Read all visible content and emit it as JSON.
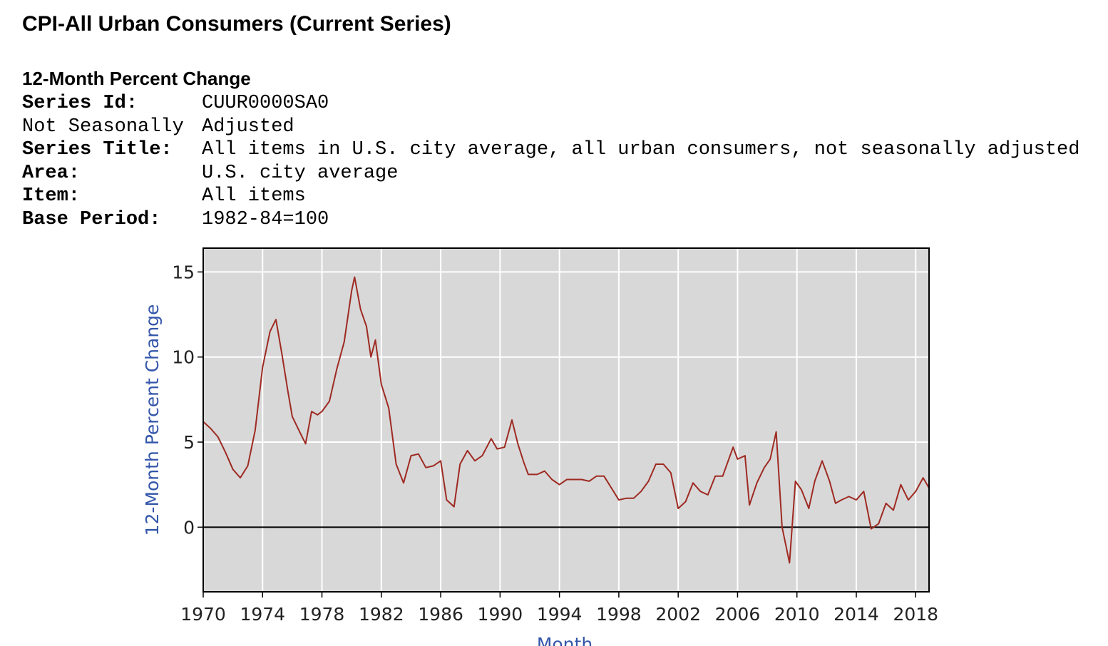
{
  "header": {
    "title": "CPI-All Urban Consumers (Current Series)",
    "subtitle": "12-Month Percent Change",
    "fields": [
      {
        "label": "Series Id:",
        "value": "CUUR0000SA0"
      },
      {
        "label": "Not Seasonally",
        "value": "Adjusted"
      },
      {
        "label": "Series Title:",
        "value": "All items in U.S. city average, all urban consumers, not seasonally adjusted"
      },
      {
        "label": "Area:",
        "value": "U.S. city average"
      },
      {
        "label": "Item:",
        "value": "All items"
      },
      {
        "label": "Base Period:",
        "value": "1982-84=100"
      }
    ]
  },
  "chart_data": {
    "type": "line",
    "xlabel": "Month",
    "ylabel": "12-Month Percent Change",
    "xlim": [
      1970,
      2018.9
    ],
    "ylim": [
      -3.8,
      16.4
    ],
    "xticks": [
      1970,
      1974,
      1978,
      1982,
      1986,
      1990,
      1994,
      1998,
      2002,
      2006,
      2010,
      2014,
      2018
    ],
    "yticks": [
      0,
      5,
      10,
      15
    ],
    "grid": true,
    "series": [
      {
        "name": "12-Month Percent Change",
        "color": "#9e2a22",
        "x": [
          1970.0,
          1970.5,
          1971.0,
          1971.5,
          1972.0,
          1972.5,
          1973.0,
          1973.5,
          1974.0,
          1974.5,
          1974.9,
          1975.3,
          1975.7,
          1976.0,
          1976.5,
          1976.9,
          1977.3,
          1977.7,
          1978.0,
          1978.5,
          1979.0,
          1979.5,
          1980.0,
          1980.2,
          1980.6,
          1981.0,
          1981.3,
          1981.6,
          1982.0,
          1982.5,
          1983.0,
          1983.5,
          1984.0,
          1984.5,
          1985.0,
          1985.5,
          1986.0,
          1986.4,
          1986.9,
          1987.3,
          1987.8,
          1988.3,
          1988.8,
          1989.4,
          1989.8,
          1990.3,
          1990.8,
          1991.2,
          1991.6,
          1991.9,
          1992.5,
          1993.0,
          1993.5,
          1994.0,
          1994.5,
          1995.0,
          1995.5,
          1996.0,
          1996.5,
          1997.0,
          1997.5,
          1998.0,
          1998.5,
          1999.0,
          1999.5,
          2000.0,
          2000.5,
          2001.0,
          2001.5,
          2002.0,
          2002.5,
          2003.0,
          2003.5,
          2004.0,
          2004.5,
          2005.0,
          2005.7,
          2006.0,
          2006.5,
          2006.8,
          2007.3,
          2007.8,
          2008.2,
          2008.6,
          2009.0,
          2009.5,
          2009.9,
          2010.3,
          2010.8,
          2011.2,
          2011.7,
          2012.2,
          2012.6,
          2013.0,
          2013.5,
          2014.0,
          2014.5,
          2015.0,
          2015.5,
          2016.0,
          2016.5,
          2017.0,
          2017.5,
          2018.0,
          2018.5,
          2018.9
        ],
        "values": [
          6.2,
          5.8,
          5.3,
          4.4,
          3.4,
          2.9,
          3.6,
          5.7,
          9.4,
          11.5,
          12.2,
          10.2,
          8.0,
          6.5,
          5.6,
          4.9,
          6.8,
          6.6,
          6.8,
          7.4,
          9.3,
          10.9,
          13.9,
          14.7,
          12.8,
          11.8,
          10.0,
          11.0,
          8.4,
          7.0,
          3.7,
          2.6,
          4.2,
          4.3,
          3.5,
          3.6,
          3.9,
          1.6,
          1.2,
          3.7,
          4.5,
          3.9,
          4.2,
          5.2,
          4.6,
          4.7,
          6.3,
          4.9,
          3.8,
          3.1,
          3.1,
          3.3,
          2.8,
          2.5,
          2.8,
          2.8,
          2.8,
          2.7,
          3.0,
          3.0,
          2.3,
          1.6,
          1.7,
          1.7,
          2.1,
          2.7,
          3.7,
          3.7,
          3.2,
          1.1,
          1.5,
          2.6,
          2.1,
          1.9,
          3.0,
          3.0,
          4.7,
          4.0,
          4.2,
          1.3,
          2.6,
          3.5,
          4.0,
          5.6,
          0.0,
          -2.1,
          2.7,
          2.2,
          1.1,
          2.7,
          3.9,
          2.7,
          1.4,
          1.6,
          1.8,
          1.6,
          2.1,
          -0.1,
          0.2,
          1.4,
          1.0,
          2.5,
          1.6,
          2.1,
          2.9,
          2.3
        ]
      }
    ]
  }
}
